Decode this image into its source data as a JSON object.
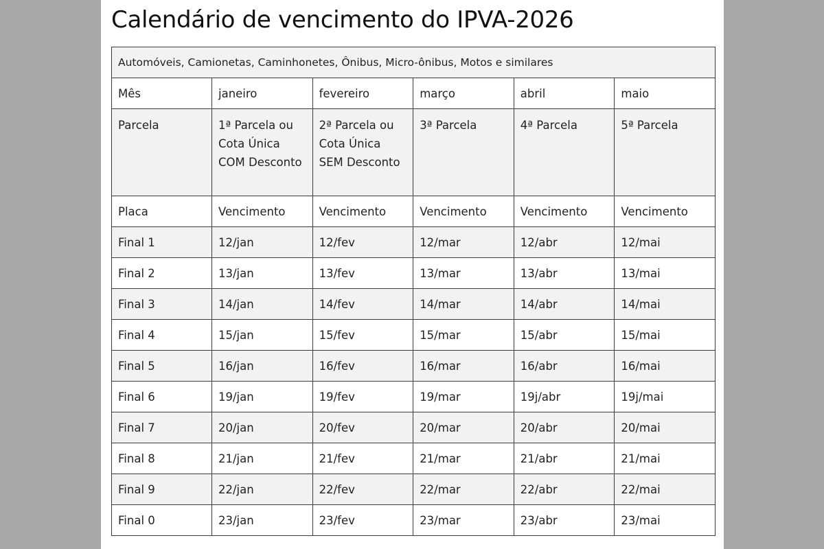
{
  "page_title": "Calendário de vencimento do IPVA-2026",
  "table": {
    "category": "Automóveis, Camionetas, Caminhonetes, Ônibus, Micro-ônibus, Motos e similares",
    "month_row": [
      "Mês",
      "janeiro",
      "fevereiro",
      "março",
      "abril",
      "maio"
    ],
    "parcela_row": [
      "Parcela",
      "1ª Parcela ou Cota Única COM Desconto",
      "2ª Parcela ou Cota Única SEM Desconto",
      "3ª Parcela",
      "4ª Parcela",
      "5ª Parcela"
    ],
    "header_row": [
      "Placa",
      "Vencimento",
      "Vencimento",
      "Vencimento",
      "Vencimento",
      "Vencimento"
    ],
    "rows": [
      [
        "Final 1",
        "12/jan",
        "12/fev",
        "12/mar",
        "12/abr",
        "12/mai"
      ],
      [
        "Final 2",
        "13/jan",
        "13/fev",
        "13/mar",
        "13/abr",
        "13/mai"
      ],
      [
        "Final 3",
        "14/jan",
        "14/fev",
        "14/mar",
        "14/abr",
        "14/mai"
      ],
      [
        "Final 4",
        "15/jan",
        "15/fev",
        "15/mar",
        "15/abr",
        "15/mai"
      ],
      [
        "Final 5",
        "16/jan",
        "16/fev",
        "16/mar",
        "16/abr",
        "16/mai"
      ],
      [
        "Final 6",
        "19/jan",
        "19/fev",
        "19/mar",
        "19j/abr",
        "19j/mai"
      ],
      [
        "Final 7",
        "20/jan",
        "20/fev",
        "20/mar",
        "20/abr",
        "20/mai"
      ],
      [
        "Final 8",
        "21/jan",
        "21/fev",
        "21/mar",
        "21/abr",
        "21/mai"
      ],
      [
        "Final 9",
        "22/jan",
        "22/fev",
        "22/mar",
        "22/abr",
        "22/mai"
      ],
      [
        "Final 0",
        "23/jan",
        "23/fev",
        "23/mar",
        "23/abr",
        "23/mai"
      ]
    ]
  },
  "colors": {
    "outer_background": "#a8a8a8",
    "page_background": "#ffffff",
    "shaded_row": "#f2f2f2",
    "border": "#3a3a3a",
    "text": "#222222"
  }
}
